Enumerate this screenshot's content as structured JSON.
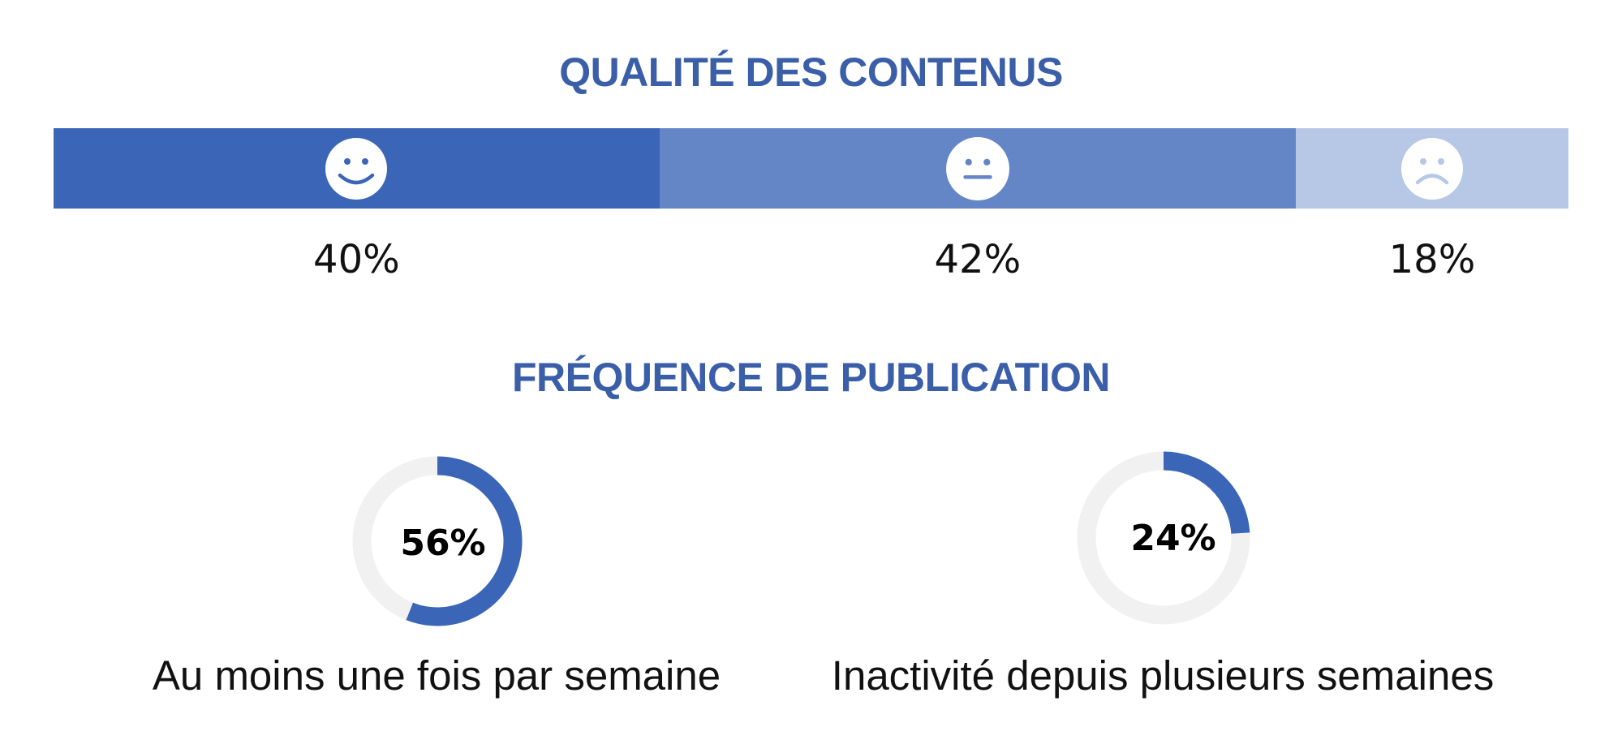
{
  "colors": {
    "title": "#3a5ea8",
    "positive": "#3b66b8",
    "neutral": "#6586c6",
    "negative": "#b7c8e7",
    "donut_fill": "#3b66b8",
    "donut_track": "#f1f1f1",
    "face": "#ffffff"
  },
  "chart_data": [
    {
      "type": "bar",
      "stacked": true,
      "orientation": "horizontal",
      "title": "QUALITÉ DES CONTENUS",
      "unit": "%",
      "series": [
        {
          "icon": "smiley-happy-icon",
          "value": 40,
          "label": "40%"
        },
        {
          "icon": "smiley-neutral-icon",
          "value": 42,
          "label": "42%"
        },
        {
          "icon": "smiley-sad-icon",
          "value": 18,
          "label": "18%"
        }
      ]
    },
    {
      "type": "pie",
      "style": "donut",
      "title": "FRÉQUENCE DE PUBLICATION",
      "items": [
        {
          "caption": "Au moins une fois par semaine",
          "value": 56,
          "label": "56%"
        },
        {
          "caption": "Inactivité depuis plusieurs semaines",
          "value": 24,
          "label": "24%"
        }
      ]
    }
  ]
}
